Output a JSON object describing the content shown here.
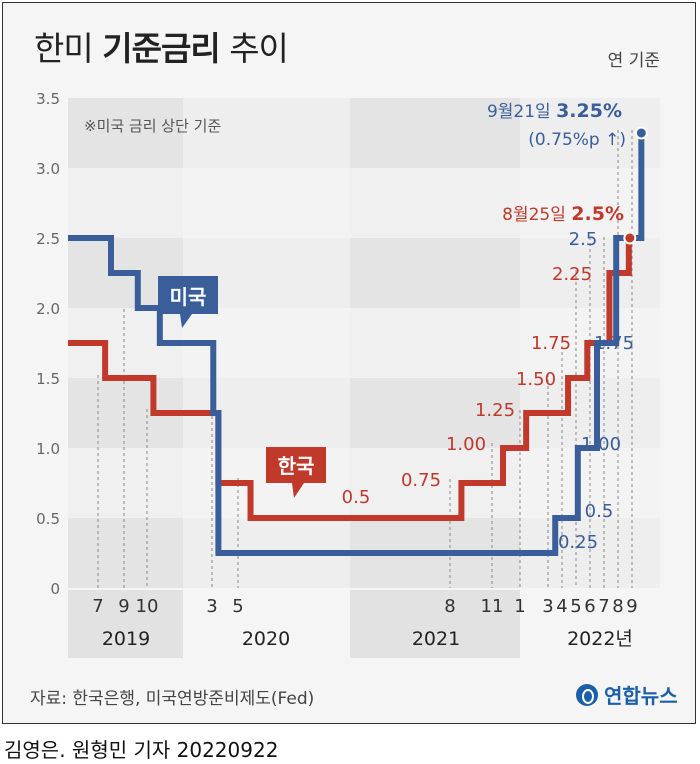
{
  "header": {
    "title_light": "한미",
    "title_bold": "기준금리",
    "title_end": "추이",
    "unit": "연 기준"
  },
  "source": "자료: 한국은행, 미국연방준비제도(Fed)",
  "logo": {
    "text": "연합뉴스",
    "icon": "yonhap-logo-icon"
  },
  "credit": "김영은. 원형민 기자 20220922",
  "colors": {
    "us": "#3a5e9a",
    "kr": "#c0392b",
    "grid_dark": "#e4e4e4",
    "grid_light": "#f5f5f5"
  },
  "chart_data": {
    "type": "line",
    "step": true,
    "title": "한미 기준금리 추이",
    "ylim": [
      0,
      3.5
    ],
    "yticks": [
      "0",
      "0.5",
      "1.0",
      "1.5",
      "2.0",
      "2.5",
      "3.0",
      "3.5"
    ],
    "note": "※미국 금리 상단 기준",
    "x_month_labels": [
      "7",
      "9",
      "10",
      "3",
      "5",
      "8",
      "11",
      "1",
      "3",
      "4",
      "5",
      "6",
      "7",
      "8",
      "9"
    ],
    "x_year_labels": [
      "2019",
      "2020",
      "2021",
      "2022년"
    ],
    "series": [
      {
        "name": "미국",
        "points": [
          [
            "2019-01-01",
            2.5
          ],
          [
            "2019-08-01",
            2.25
          ],
          [
            "2019-09-19",
            2.0
          ],
          [
            "2019-10-31",
            1.75
          ],
          [
            "2020-03-04",
            1.25
          ],
          [
            "2020-03-16",
            0.25
          ],
          [
            "2022-03-17",
            0.5
          ],
          [
            "2022-05-05",
            1.0
          ],
          [
            "2022-06-16",
            1.75
          ],
          [
            "2022-07-28",
            2.5
          ],
          [
            "2022-09-21",
            3.25
          ]
        ],
        "labels": [
          "0.25",
          "0.5",
          "1.00",
          "1.75",
          "2.5"
        ]
      },
      {
        "name": "한국",
        "points": [
          [
            "2019-01-01",
            1.75
          ],
          [
            "2019-07-18",
            1.5
          ],
          [
            "2019-10-16",
            1.25
          ],
          [
            "2020-03-16",
            0.75
          ],
          [
            "2020-05-28",
            0.5
          ],
          [
            "2021-08-26",
            0.75
          ],
          [
            "2021-11-25",
            1.0
          ],
          [
            "2022-01-14",
            1.25
          ],
          [
            "2022-04-14",
            1.5
          ],
          [
            "2022-05-26",
            1.75
          ],
          [
            "2022-07-13",
            2.25
          ],
          [
            "2022-08-25",
            2.5
          ]
        ],
        "labels": [
          "0.5",
          "0.75",
          "1.00",
          "1.25",
          "1.50",
          "1.75",
          "2.25"
        ]
      }
    ],
    "annotations": {
      "us_date": "9월21일",
      "us_value": "3.25%",
      "us_change": "(0.75%p ↑)",
      "kr_date": "8월25일",
      "kr_value": "2.5%"
    }
  }
}
